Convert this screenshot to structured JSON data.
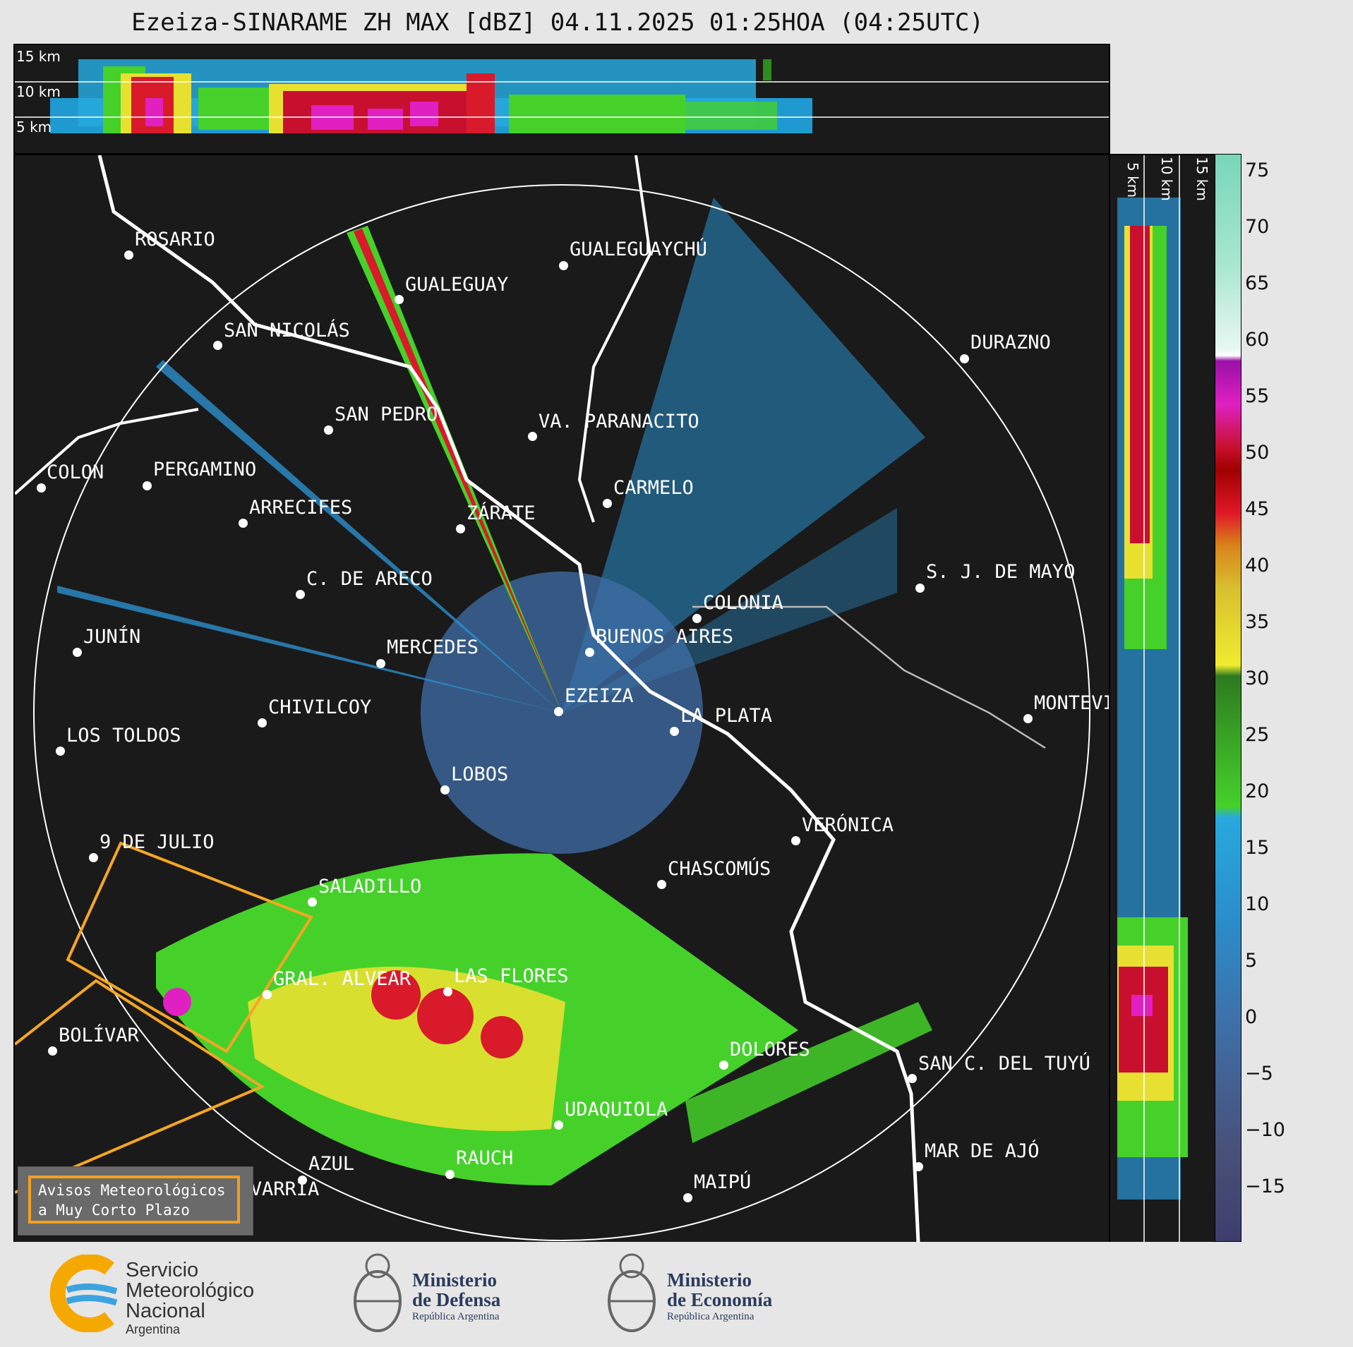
{
  "title": "Ezeiza-SINARAME ZH MAX [dBZ] 04.11.2025 01:25HOA (04:25UTC)",
  "top_panel": {
    "altitude_labels": [
      "15 km",
      "10 km",
      "5 km"
    ]
  },
  "side_panel": {
    "altitude_labels": [
      "5 km",
      "10 km",
      "15 km"
    ]
  },
  "colorbar": {
    "unit": "dBZ",
    "ticks": [
      "75",
      "70",
      "65",
      "60",
      "55",
      "50",
      "45",
      "40",
      "35",
      "30",
      "25",
      "20",
      "15",
      "10",
      "5",
      "0",
      "−5",
      "−10",
      "−15"
    ]
  },
  "cities": [
    {
      "name": "ROSARIO"
    },
    {
      "name": "GUALEGUAYCHÚ"
    },
    {
      "name": "GUALEGUAY"
    },
    {
      "name": "SAN NICOLÁS"
    },
    {
      "name": "DURAZNO"
    },
    {
      "name": "SAN PEDRO"
    },
    {
      "name": "VA. PARANACITO"
    },
    {
      "name": "COLON"
    },
    {
      "name": "PERGAMINO"
    },
    {
      "name": "CARMELO"
    },
    {
      "name": "ARRECIFES"
    },
    {
      "name": "ZÁRATE"
    },
    {
      "name": "S. J. DE MAYO"
    },
    {
      "name": "C. DE ARECO"
    },
    {
      "name": "COLONIA"
    },
    {
      "name": "JUNÍN"
    },
    {
      "name": "BUENOS AIRES"
    },
    {
      "name": "MERCEDES"
    },
    {
      "name": "MONTEVIDEO"
    },
    {
      "name": "CHIVILCOY"
    },
    {
      "name": "EZEIZA"
    },
    {
      "name": "LA PLATA"
    },
    {
      "name": "LOS TOLDOS"
    },
    {
      "name": "LOBOS"
    },
    {
      "name": "VERÓNICA"
    },
    {
      "name": "9 DE JULIO"
    },
    {
      "name": "CHASCOMÚS"
    },
    {
      "name": "SALADILLO"
    },
    {
      "name": "GRAL. ALVEAR"
    },
    {
      "name": "LAS FLORES"
    },
    {
      "name": "BOLÍVAR"
    },
    {
      "name": "DOLORES"
    },
    {
      "name": "SAN C. DEL TUYÚ"
    },
    {
      "name": "UDAQUIOLA"
    },
    {
      "name": "MAR DE AJÓ"
    },
    {
      "name": "AZUL"
    },
    {
      "name": "RAUCH"
    },
    {
      "name": "OLAVARRÍA"
    },
    {
      "name": "MAIPÚ"
    }
  ],
  "legend": {
    "line1": "Avisos Meteorológicos",
    "line2": "a Muy Corto Plazo"
  },
  "footer": {
    "smn": {
      "line1": "Servicio",
      "line2": "Meteorológico",
      "line3": "Nacional",
      "line4": "Argentina"
    },
    "defensa": {
      "line1": "Ministerio",
      "line2": "de Defensa",
      "line3": "República Argentina"
    },
    "economia": {
      "line1": "Ministerio",
      "line2": "de Economía",
      "line3": "República Argentina"
    }
  }
}
